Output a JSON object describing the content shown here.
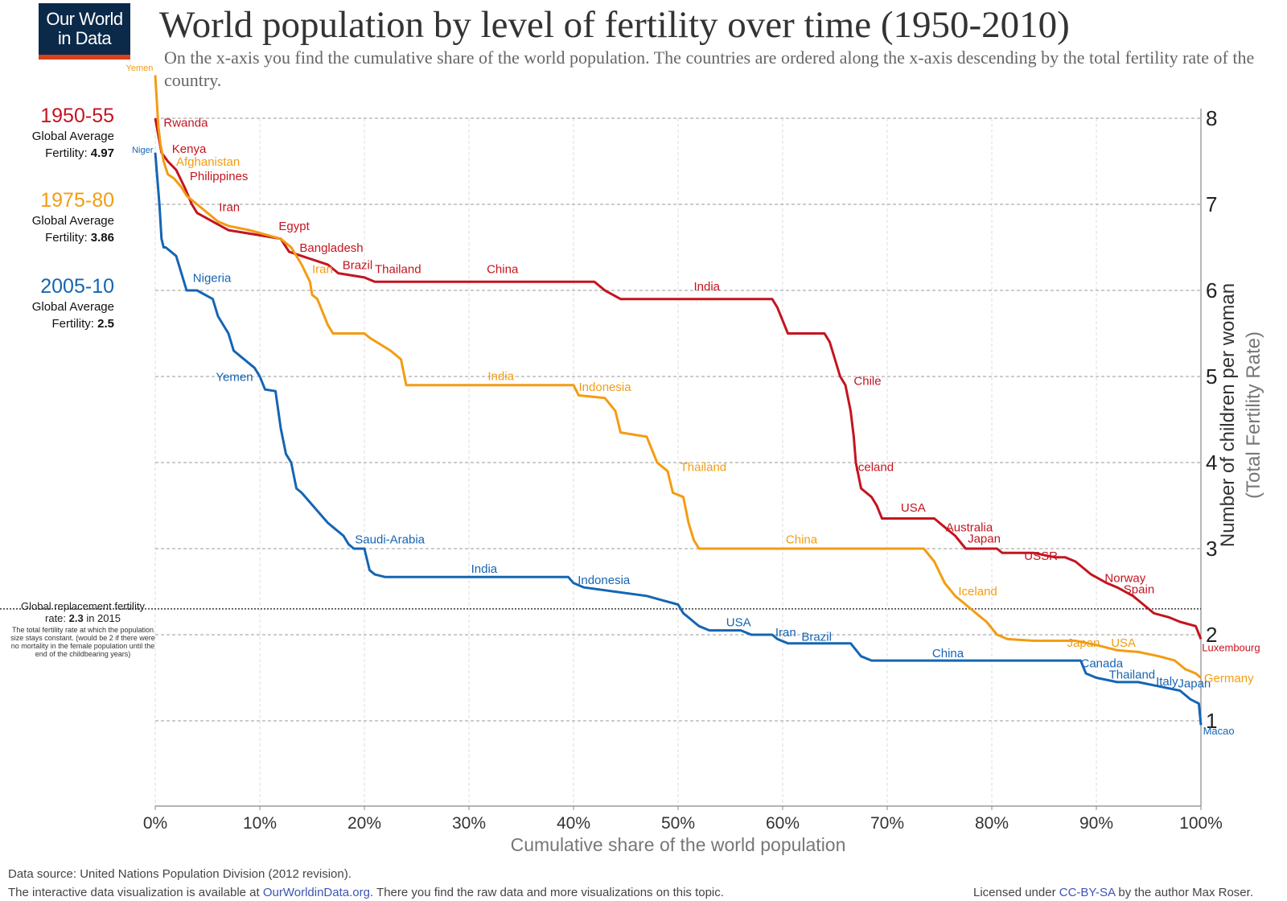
{
  "logo": {
    "line1": "Our World",
    "line2": "in Data"
  },
  "title": "World population by level of fertility over time (1950-2010)",
  "subtitle": "On the x-axis you find the cumulative share of the world population. The countries are ordered along the x-axis descending by the total fertility rate of the country.",
  "periods": [
    {
      "name": "1950-55",
      "label": "Global Average",
      "fert_label": "Fertility:",
      "fert_value": "4.97",
      "color": "#c4141f"
    },
    {
      "name": "1975-80",
      "label": "Global Average",
      "fert_label": "Fertility:",
      "fert_value": "3.86",
      "color": "#f39c12"
    },
    {
      "name": "2005-10",
      "label": "Global Average",
      "fert_label": "Fertility:",
      "fert_value": "2.5",
      "color": "#1565b3"
    }
  ],
  "replacement": {
    "line1": "Global replacement fertility",
    "line2_pre": "rate: ",
    "line2_val": "2.3",
    "line2_post": " in 2015",
    "note": "The total fertility rate at which the population size stays constant. (would be 2 if there were no mortality in the female population until the end of the childbearing years)",
    "value": 2.3
  },
  "footer": {
    "source": "Data source: United Nations Population Division (2012 revision).",
    "interactive_pre": "The interactive data visualization is available at ",
    "interactive_link": "OurWorldinData.org",
    "interactive_post": ". There you find the raw data and more visualizations on this topic.",
    "license_pre": "Licensed under ",
    "license_link": "CC-BY-SA",
    "license_post": " by the author Max Roser."
  },
  "chart_data": {
    "type": "line",
    "xlabel": "Cumulative share of the world population",
    "ylabel": "Number of children per woman",
    "ylabel2": "(Total Fertility Rate)",
    "xlim": [
      0,
      100
    ],
    "ylim": [
      0,
      8
    ],
    "x_ticks": [
      "0%",
      "10%",
      "20%",
      "30%",
      "40%",
      "50%",
      "60%",
      "70%",
      "80%",
      "90%",
      "100%"
    ],
    "y_ticks": [
      "1",
      "2",
      "3",
      "4",
      "5",
      "6",
      "7",
      "8"
    ],
    "series": [
      {
        "name": "1950-55",
        "color": "#c4141f",
        "x": [
          0,
          0.3,
          0.6,
          1.2,
          2.0,
          2.8,
          3.5,
          4.0,
          5.5,
          7.0,
          9.5,
          12.0,
          12.8,
          14.0,
          16.5,
          17.5,
          20.0,
          21.0,
          25.0,
          33.0,
          42.0,
          43.0,
          44.5,
          47.5,
          59.0,
          59.5,
          60.5,
          64.0,
          64.5,
          65.5,
          66.0,
          66.5,
          66.8,
          67.0,
          67.5,
          68.5,
          69.0,
          69.5,
          74.5,
          75.5,
          76.5,
          77.5,
          80.5,
          81.0,
          84.0,
          86.0,
          87.0,
          88.0,
          88.5,
          89.5,
          91.0,
          92.0,
          93.5,
          94.5,
          95.5,
          97.0,
          98.0,
          99.5,
          100
        ],
        "y": [
          8.0,
          7.8,
          7.6,
          7.5,
          7.4,
          7.2,
          7.0,
          6.9,
          6.8,
          6.7,
          6.65,
          6.6,
          6.45,
          6.4,
          6.3,
          6.2,
          6.15,
          6.1,
          6.1,
          6.1,
          6.1,
          6.0,
          5.9,
          5.9,
          5.9,
          5.8,
          5.5,
          5.5,
          5.4,
          5.0,
          4.9,
          4.6,
          4.3,
          4.0,
          3.7,
          3.6,
          3.5,
          3.35,
          3.35,
          3.25,
          3.15,
          3.0,
          3.0,
          2.95,
          2.95,
          2.9,
          2.9,
          2.85,
          2.8,
          2.7,
          2.6,
          2.55,
          2.45,
          2.35,
          2.25,
          2.2,
          2.15,
          2.1,
          1.95
        ]
      },
      {
        "name": "1975-80",
        "color": "#f39c12",
        "x": [
          0,
          0.3,
          0.5,
          0.8,
          1.2,
          1.8,
          2.5,
          3.0,
          4.0,
          5.0,
          6.0,
          7.0,
          9.0,
          12.0,
          13.0,
          14.0,
          14.8,
          15.0,
          15.5,
          16.5,
          17.0,
          20.0,
          20.5,
          22.5,
          23.5,
          24.0,
          33.0,
          40.0,
          40.5,
          43.0,
          44.0,
          44.5,
          47.0,
          48.0,
          48.5,
          49.0,
          49.5,
          50.5,
          51.0,
          51.5,
          52.0,
          55.0,
          61.0,
          73.5,
          74.5,
          75.5,
          76.5,
          77.5,
          78.5,
          79.5,
          80.5,
          81.5,
          84.0,
          88.0,
          90.0,
          92.0,
          94.0,
          96.0,
          97.5,
          98.5,
          99.5,
          100
        ],
        "y": [
          8.5,
          7.9,
          7.7,
          7.5,
          7.35,
          7.3,
          7.2,
          7.1,
          7.0,
          6.9,
          6.8,
          6.75,
          6.7,
          6.6,
          6.5,
          6.3,
          6.1,
          5.95,
          5.9,
          5.6,
          5.5,
          5.5,
          5.45,
          5.3,
          5.2,
          4.9,
          4.9,
          4.9,
          4.78,
          4.75,
          4.6,
          4.35,
          4.3,
          4.0,
          3.95,
          3.9,
          3.65,
          3.6,
          3.3,
          3.1,
          3.0,
          3.0,
          3.0,
          3.0,
          2.85,
          2.6,
          2.45,
          2.35,
          2.25,
          2.15,
          2.0,
          1.95,
          1.93,
          1.93,
          1.88,
          1.82,
          1.8,
          1.75,
          1.7,
          1.6,
          1.55,
          1.5
        ]
      },
      {
        "name": "2005-10",
        "color": "#1565b3",
        "x": [
          0,
          0.2,
          0.4,
          0.6,
          0.8,
          1.0,
          2.0,
          2.5,
          3.0,
          3.5,
          4.0,
          5.5,
          6.0,
          7.0,
          7.5,
          8.0,
          9.5,
          10.0,
          10.5,
          11.5,
          12.0,
          12.5,
          13.0,
          13.5,
          14.0,
          16.5,
          17.0,
          18.0,
          18.5,
          19.0,
          20.0,
          20.5,
          21.0,
          22.0,
          25.0,
          39.5,
          40.0,
          41.0,
          44.0,
          47.0,
          48.5,
          50.0,
          50.5,
          51.0,
          51.5,
          52.0,
          53.0,
          54.0,
          56.0,
          57.0,
          59.0,
          59.5,
          60.5,
          66.5,
          67.5,
          68.5,
          75.0,
          80.0,
          88.5,
          89.0,
          90.0,
          92.0,
          94.0,
          96.0,
          98.0,
          99.0,
          99.8,
          100
        ],
        "y": [
          7.6,
          7.3,
          7.0,
          6.6,
          6.5,
          6.5,
          6.4,
          6.2,
          6.0,
          6.0,
          6.0,
          5.9,
          5.7,
          5.5,
          5.3,
          5.25,
          5.1,
          5.0,
          4.85,
          4.83,
          4.4,
          4.1,
          4.0,
          3.7,
          3.65,
          3.3,
          3.25,
          3.15,
          3.05,
          3.0,
          3.0,
          2.75,
          2.7,
          2.67,
          2.67,
          2.67,
          2.6,
          2.55,
          2.5,
          2.45,
          2.4,
          2.35,
          2.25,
          2.2,
          2.15,
          2.1,
          2.05,
          2.05,
          2.05,
          2.0,
          2.0,
          1.95,
          1.9,
          1.9,
          1.75,
          1.7,
          1.7,
          1.7,
          1.7,
          1.55,
          1.5,
          1.45,
          1.45,
          1.4,
          1.35,
          1.25,
          1.2,
          0.95
        ]
      }
    ],
    "annotations": [
      {
        "text": "Yemen",
        "series": "1975-80",
        "x": -0.2,
        "y": 8.55,
        "anchor": "end",
        "size": 11
      },
      {
        "text": "Rwanda",
        "series": "1950-55",
        "x": 0.8,
        "y": 7.9,
        "anchor": "start"
      },
      {
        "text": "Niger",
        "series": "2005-10",
        "x": -0.2,
        "y": 7.6,
        "anchor": "end",
        "size": 11
      },
      {
        "text": "Kenya",
        "series": "1950-55",
        "x": 1.6,
        "y": 7.6,
        "anchor": "start"
      },
      {
        "text": "Afghanistan",
        "series": "1975-80",
        "x": 2.0,
        "y": 7.45,
        "anchor": "start"
      },
      {
        "text": "Philippines",
        "series": "1950-55",
        "x": 3.3,
        "y": 7.28,
        "anchor": "start"
      },
      {
        "text": "Iran",
        "series": "1950-55",
        "x": 6.1,
        "y": 6.92,
        "anchor": "start"
      },
      {
        "text": "Egypt",
        "series": "1950-55",
        "x": 11.8,
        "y": 6.7,
        "anchor": "start"
      },
      {
        "text": "Bangladesh",
        "series": "1950-55",
        "x": 13.8,
        "y": 6.45,
        "anchor": "start"
      },
      {
        "text": "Iran",
        "series": "1975-80",
        "x": 15.0,
        "y": 6.2,
        "anchor": "start"
      },
      {
        "text": "Brazil",
        "series": "1950-55",
        "x": 17.9,
        "y": 6.25,
        "anchor": "start"
      },
      {
        "text": "Thailand",
        "series": "1950-55",
        "x": 21.0,
        "y": 6.2,
        "anchor": "start"
      },
      {
        "text": "China",
        "series": "1950-55",
        "x": 31.7,
        "y": 6.2,
        "anchor": "start"
      },
      {
        "text": "Nigeria",
        "series": "2005-10",
        "x": 3.6,
        "y": 6.1,
        "anchor": "start"
      },
      {
        "text": "India",
        "series": "1950-55",
        "x": 51.5,
        "y": 6.0,
        "anchor": "start"
      },
      {
        "text": "Yemen",
        "series": "2005-10",
        "x": 5.8,
        "y": 4.95,
        "anchor": "start"
      },
      {
        "text": "India",
        "series": "1975-80",
        "x": 31.8,
        "y": 4.96,
        "anchor": "start"
      },
      {
        "text": "Indonesia",
        "series": "1975-80",
        "x": 40.5,
        "y": 4.83,
        "anchor": "start"
      },
      {
        "text": "Chile",
        "series": "1950-55",
        "x": 66.8,
        "y": 4.9,
        "anchor": "start"
      },
      {
        "text": "Thailand",
        "series": "1975-80",
        "x": 50.2,
        "y": 3.9,
        "anchor": "start"
      },
      {
        "text": "Iceland",
        "series": "1950-55",
        "x": 66.9,
        "y": 3.9,
        "anchor": "start"
      },
      {
        "text": "USA",
        "series": "1950-55",
        "x": 71.3,
        "y": 3.43,
        "anchor": "start"
      },
      {
        "text": "Australia",
        "series": "1950-55",
        "x": 75.6,
        "y": 3.2,
        "anchor": "start"
      },
      {
        "text": "Japan",
        "series": "1950-55",
        "x": 77.7,
        "y": 3.07,
        "anchor": "start"
      },
      {
        "text": "USSR",
        "series": "1950-55",
        "x": 83.1,
        "y": 2.87,
        "anchor": "start"
      },
      {
        "text": "Norway",
        "series": "1950-55",
        "x": 90.8,
        "y": 2.61,
        "anchor": "start"
      },
      {
        "text": "Spain",
        "series": "1950-55",
        "x": 92.6,
        "y": 2.48,
        "anchor": "start"
      },
      {
        "text": "Luxembourg",
        "series": "1950-55",
        "x": 100.1,
        "y": 1.81,
        "anchor": "start",
        "size": 13
      },
      {
        "text": "Saudi-Arabia",
        "series": "2005-10",
        "x": 19.1,
        "y": 3.06,
        "anchor": "start"
      },
      {
        "text": "China",
        "series": "1975-80",
        "x": 60.3,
        "y": 3.06,
        "anchor": "start"
      },
      {
        "text": "India",
        "series": "2005-10",
        "x": 30.2,
        "y": 2.72,
        "anchor": "start"
      },
      {
        "text": "Indonesia",
        "series": "2005-10",
        "x": 40.4,
        "y": 2.59,
        "anchor": "start"
      },
      {
        "text": "Iceland",
        "series": "1975-80",
        "x": 76.8,
        "y": 2.46,
        "anchor": "start"
      },
      {
        "text": "USA",
        "series": "2005-10",
        "x": 54.6,
        "y": 2.1,
        "anchor": "start"
      },
      {
        "text": "Iran",
        "series": "2005-10",
        "x": 59.3,
        "y": 1.98,
        "anchor": "start"
      },
      {
        "text": "Brazil",
        "series": "2005-10",
        "x": 61.8,
        "y": 1.93,
        "anchor": "start"
      },
      {
        "text": "Japan",
        "series": "1975-80",
        "x": 87.2,
        "y": 1.86,
        "anchor": "start"
      },
      {
        "text": "USA",
        "series": "1975-80",
        "x": 91.4,
        "y": 1.86,
        "anchor": "start"
      },
      {
        "text": "China",
        "series": "2005-10",
        "x": 74.3,
        "y": 1.74,
        "anchor": "start"
      },
      {
        "text": "Canada",
        "series": "2005-10",
        "x": 88.5,
        "y": 1.62,
        "anchor": "start"
      },
      {
        "text": "Thailand",
        "series": "2005-10",
        "x": 91.2,
        "y": 1.49,
        "anchor": "start"
      },
      {
        "text": "Italy",
        "series": "2005-10",
        "x": 95.7,
        "y": 1.41,
        "anchor": "start"
      },
      {
        "text": "Japan",
        "series": "2005-10",
        "x": 97.8,
        "y": 1.39,
        "anchor": "start"
      },
      {
        "text": "Germany",
        "series": "1975-80",
        "x": 100.3,
        "y": 1.45,
        "anchor": "start"
      },
      {
        "text": "Macao",
        "series": "2005-10",
        "x": 100.2,
        "y": 0.84,
        "anchor": "start",
        "size": 13
      }
    ]
  }
}
